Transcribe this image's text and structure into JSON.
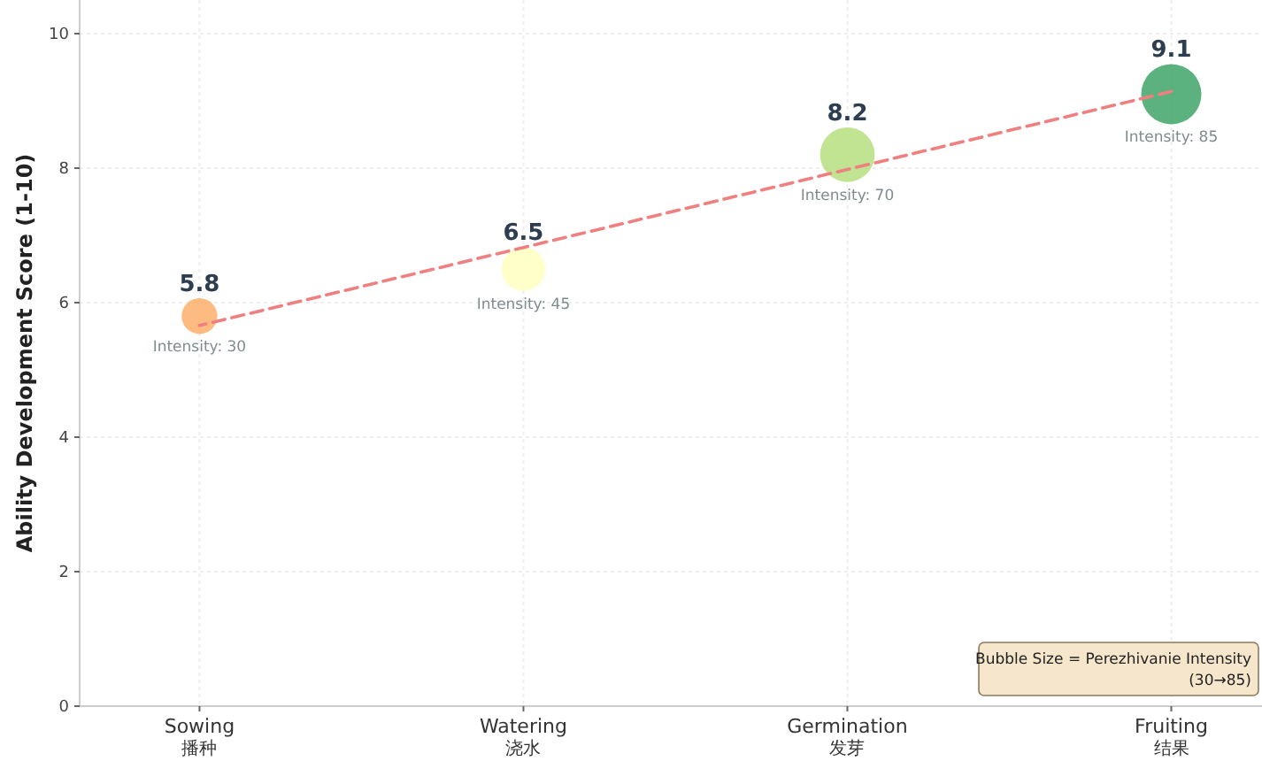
{
  "chart_data": {
    "type": "bubble",
    "ylabel": "Ability Development Score (1-10)",
    "categories": [
      "Sowing\n播种",
      "Watering\n浇水",
      "Germination\n发芽",
      "Fruiting\n结果"
    ],
    "ylim": [
      0,
      10.5
    ],
    "yticks": [
      0,
      2,
      4,
      6,
      8,
      10
    ],
    "grid": true,
    "series": [
      {
        "values": [
          5.8,
          6.5,
          8.2,
          9.1
        ],
        "value_labels": [
          "5.8",
          "6.5",
          "8.2",
          "9.1"
        ],
        "sizes": [
          0.353,
          0.529,
          0.824,
          1
        ],
        "colors": [
          "#fdae6b",
          "#ffffbf",
          "#b5df7f",
          "#3ea567"
        ]
      },
      {
        "type": "line",
        "values": [
          5.66,
          6.82,
          7.98,
          9.14
        ],
        "color": "#f08080",
        "line_style": "dashed"
      }
    ],
    "annotations": [
      {
        "text": "Intensity: 30",
        "x": "Sowing\n播种",
        "y": 5.8
      },
      {
        "text": "Intensity: 45",
        "x": "Watering\n浇水",
        "y": 6.5
      },
      {
        "text": "Intensity: 70",
        "x": "Germination\n发芽",
        "y": 8.2
      },
      {
        "text": "Intensity: 85",
        "x": "Fruiting\n结果",
        "y": 9.1
      },
      "Bubble Size = Perezhivanie Intensity\n(30→85)"
    ]
  }
}
